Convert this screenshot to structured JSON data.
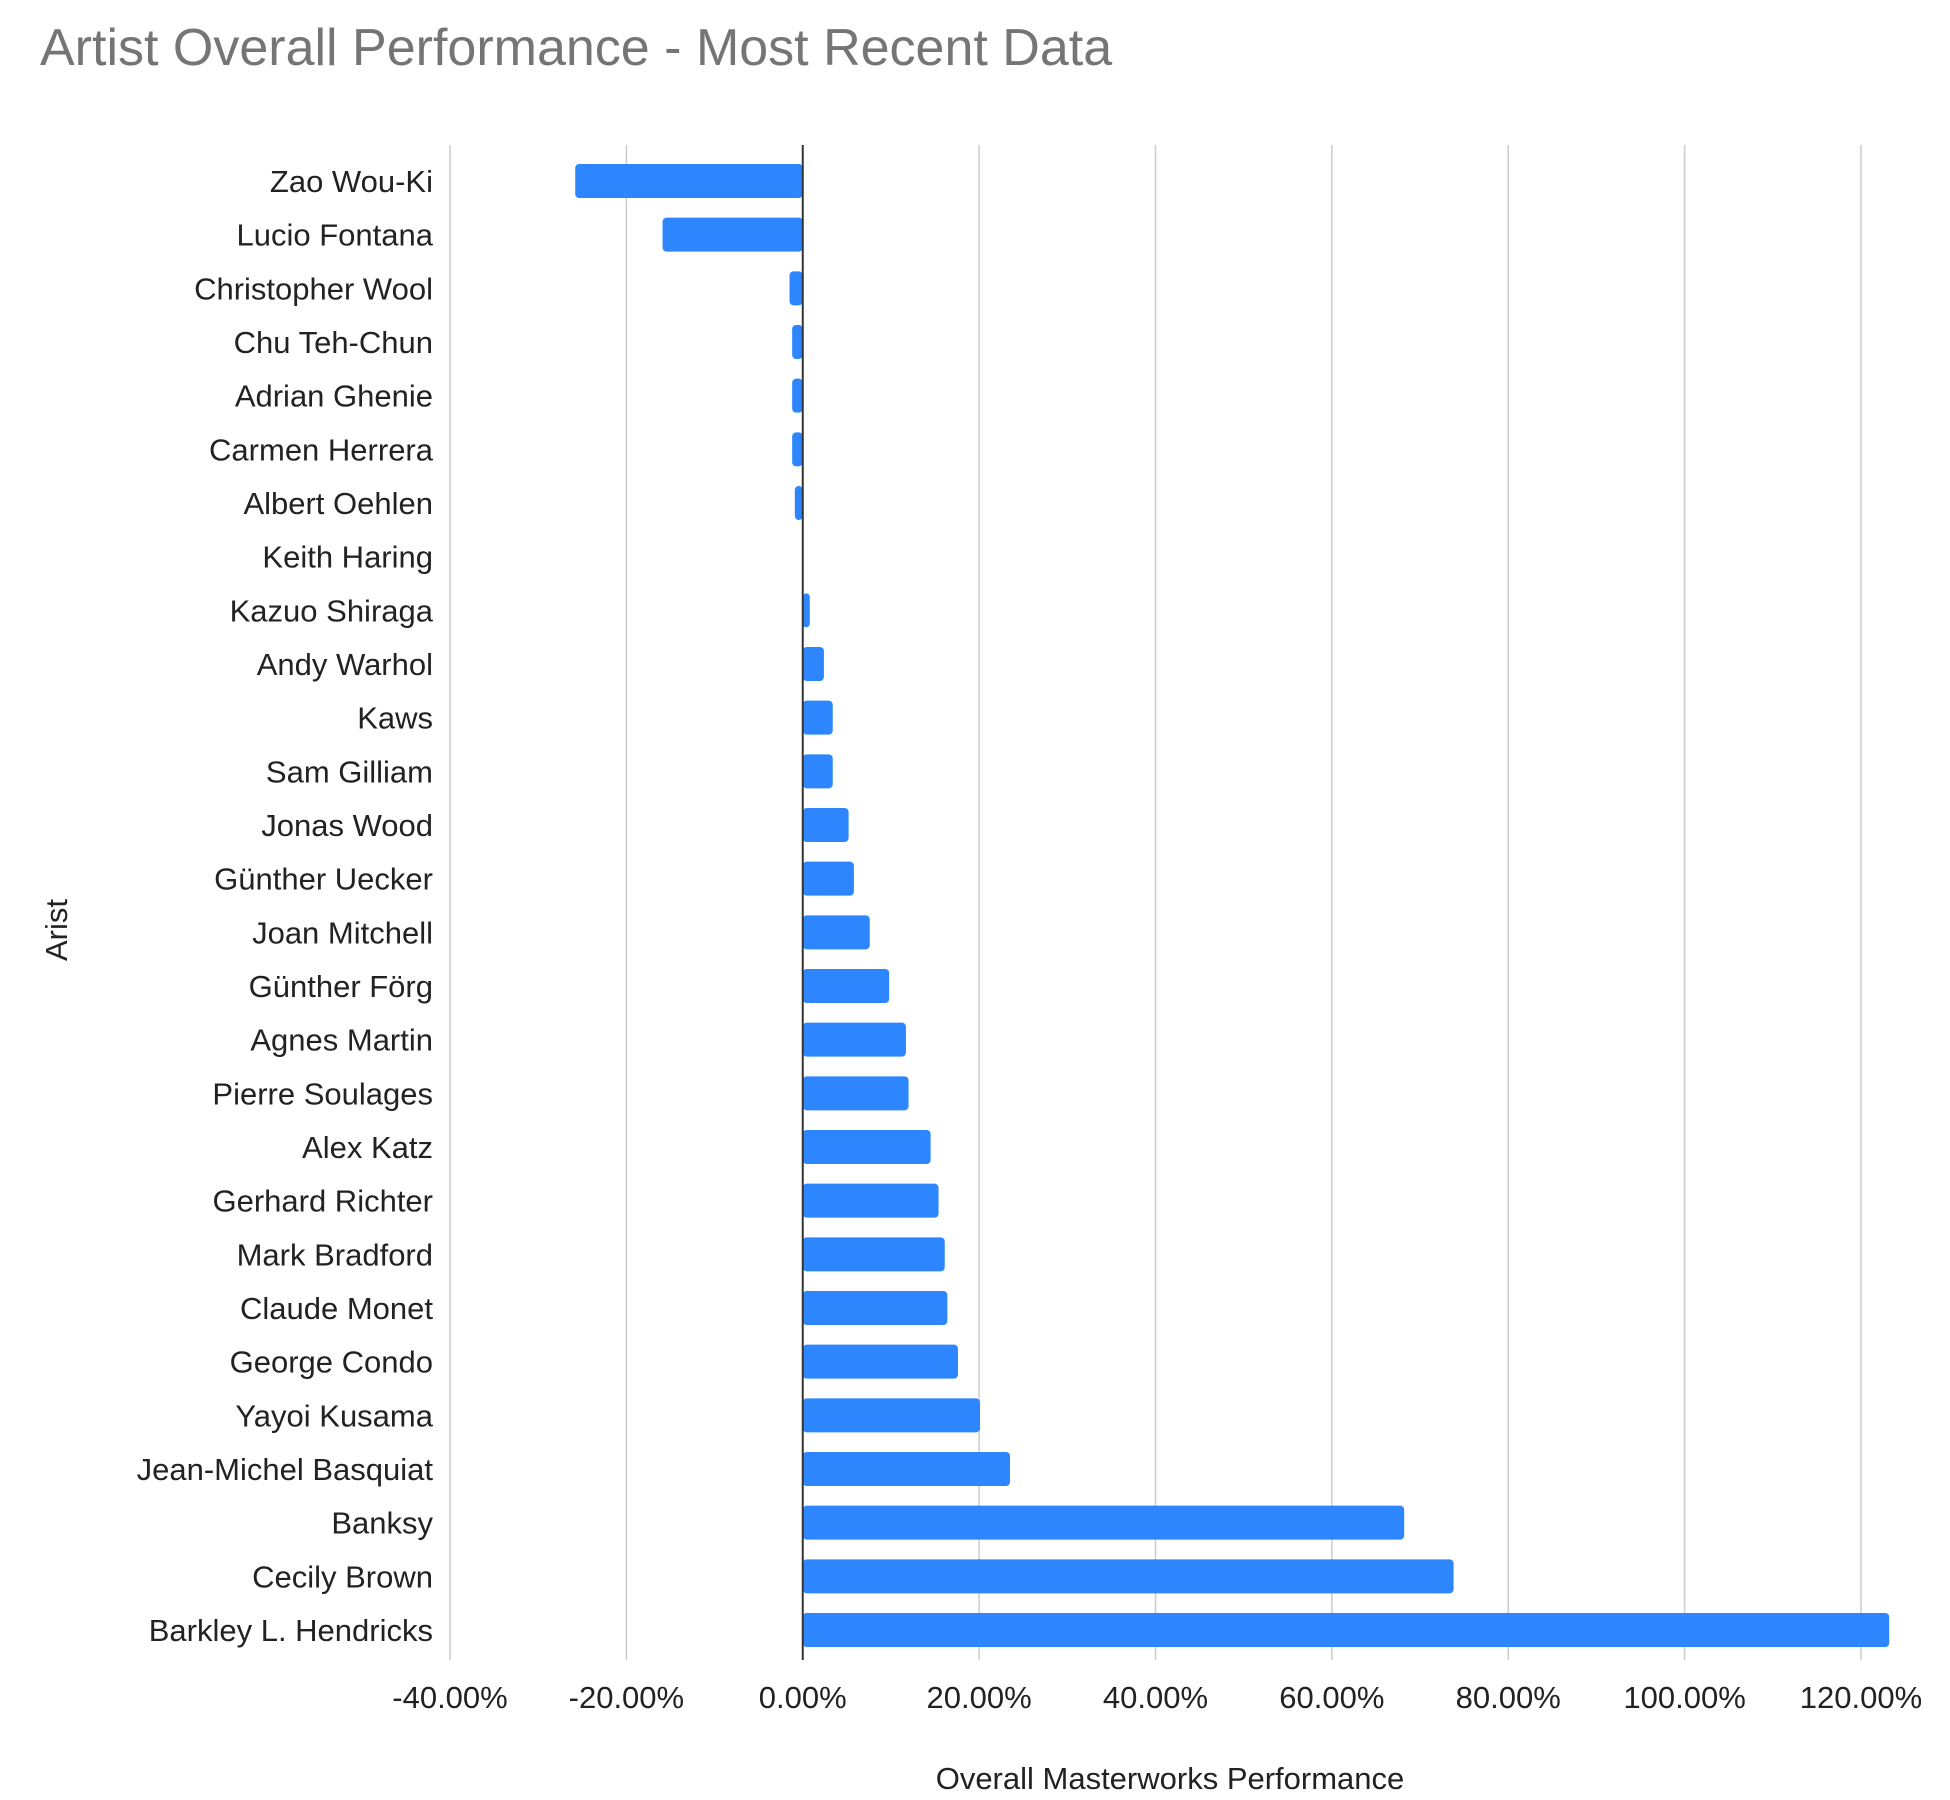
{
  "chart_data": {
    "type": "bar",
    "orientation": "horizontal",
    "title": "Artist Overall Performance - Most Recent Data",
    "xlabel": "Overall Masterworks Performance",
    "ylabel": "Arist",
    "xlim": [
      -40,
      120
    ],
    "x_tick_values": [
      -40,
      -20,
      0,
      20,
      40,
      60,
      80,
      100,
      120
    ],
    "x_tick_labels": [
      "-40.00%",
      "-20.00%",
      "0.00%",
      "20.00%",
      "40.00%",
      "60.00%",
      "80.00%",
      "100.00%",
      "120.00%"
    ],
    "grid": true,
    "bar_color": "#2E86FF",
    "categories": [
      "Zao Wou-Ki",
      "Lucio Fontana",
      "Christopher Wool",
      "Chu Teh-Chun",
      "Adrian Ghenie",
      "Carmen Herrera",
      "Albert Oehlen",
      "Keith Haring",
      "Kazuo Shiraga",
      "Andy Warhol",
      "Kaws",
      "Sam Gilliam",
      "Jonas Wood",
      "Günther Uecker",
      "Joan Mitchell",
      "Günther Förg",
      "Agnes Martin",
      "Pierre Soulages",
      "Alex Katz",
      "Gerhard Richter",
      "Mark Bradford",
      "Claude Monet",
      "George Condo",
      "Yayoi Kusama",
      "Jean-Michel Basquiat",
      "Banksy",
      "Cecily Brown",
      "Barkley L. Hendricks"
    ],
    "values": [
      -25.8,
      -15.9,
      -1.5,
      -1.2,
      -1.2,
      -1.2,
      -0.9,
      0,
      0.8,
      2.4,
      3.4,
      3.4,
      5.2,
      5.8,
      7.6,
      9.8,
      11.7,
      12.0,
      14.5,
      15.4,
      16.1,
      16.4,
      17.6,
      20.1,
      23.5,
      68.2,
      73.8,
      123.2
    ]
  }
}
